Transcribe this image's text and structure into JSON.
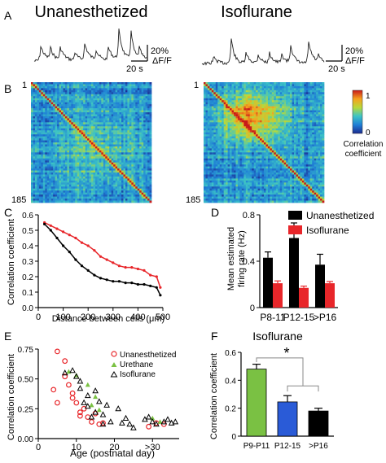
{
  "panel_letters": [
    "A",
    "B",
    "C",
    "D",
    "E",
    "F"
  ],
  "panel_a": {
    "titles": [
      "Unanesthetized",
      "Isoflurane"
    ],
    "scale_y": "20%",
    "scale_unit": "ΔF/F",
    "scale_x": "20 s"
  },
  "panel_b": {
    "row_top": "1",
    "row_bottom": "185",
    "colorbar_max": "1",
    "colorbar_min": "0",
    "colorbar_label_1": "Correlation",
    "colorbar_label_2": "coefficient"
  },
  "colors": {
    "black": "#000000",
    "red": "#e8262a",
    "green": "#7ac143",
    "blue": "#2a5bd7",
    "heatmap_low": "#1f3f9a",
    "heatmap_high": "#d7191c"
  },
  "chart_data": [
    {
      "panel": "C",
      "type": "line",
      "xlabel": "Distance between cells (μm)",
      "ylabel": "Correlation coefficient",
      "xlim": [
        0,
        500
      ],
      "ylim": [
        0,
        0.6
      ],
      "xticks": [
        0,
        100,
        200,
        300,
        400,
        500
      ],
      "yticks": [
        0.0,
        0.1,
        0.2,
        0.3,
        0.4,
        0.5,
        0.6
      ],
      "ytick_labels": [
        "0.0",
        "0.1",
        "0.2",
        "0.3",
        "0.4",
        "0.5",
        "0.6"
      ],
      "series": [
        {
          "color": "#e8262a",
          "x": [
            25,
            50,
            75,
            100,
            125,
            150,
            175,
            200,
            225,
            250,
            275,
            300,
            325,
            350,
            375,
            400,
            425,
            450,
            475,
            490
          ],
          "y": [
            0.55,
            0.53,
            0.51,
            0.49,
            0.47,
            0.45,
            0.42,
            0.4,
            0.37,
            0.33,
            0.31,
            0.29,
            0.27,
            0.26,
            0.26,
            0.25,
            0.24,
            0.21,
            0.2,
            0.13
          ]
        },
        {
          "color": "#000000",
          "x": [
            25,
            50,
            75,
            100,
            125,
            150,
            175,
            200,
            225,
            250,
            275,
            300,
            325,
            350,
            375,
            400,
            425,
            450,
            475,
            490
          ],
          "y": [
            0.54,
            0.5,
            0.45,
            0.4,
            0.36,
            0.31,
            0.27,
            0.24,
            0.21,
            0.19,
            0.18,
            0.17,
            0.17,
            0.16,
            0.16,
            0.15,
            0.15,
            0.14,
            0.13,
            0.08
          ]
        }
      ]
    },
    {
      "panel": "D",
      "type": "bar",
      "categories": [
        "P8-11",
        "P12-15",
        ">P16"
      ],
      "ylabel_1": "Mean estimated",
      "ylabel_2": "firing rate (Hz)",
      "ylim": [
        0,
        0.8
      ],
      "yticks": [
        0,
        0.4,
        0.8
      ],
      "ytick_labels": [
        "0",
        "0.4",
        "0.8"
      ],
      "series": [
        {
          "name": "Unanesthetized",
          "color": "#000000",
          "values": [
            0.43,
            0.6,
            0.37
          ],
          "errors": [
            0.05,
            0.13,
            0.09
          ]
        },
        {
          "name": "Isoflurane",
          "color": "#e8262a",
          "values": [
            0.21,
            0.17,
            0.21
          ],
          "errors": [
            0.02,
            0.015,
            0.015
          ]
        }
      ],
      "legend": "top-right"
    },
    {
      "panel": "E",
      "type": "scatter",
      "xlabel": "Age (postnatal day)",
      "ylabel": "Correlation coefficient",
      "xlim": [
        0,
        37
      ],
      "ylim": [
        0,
        0.75
      ],
      "xticks": [
        0,
        10,
        20
      ],
      "xtick_labels": [
        "0",
        "10",
        "20"
      ],
      "extra_xtick": ">30",
      "yticks": [
        0.0,
        0.25,
        0.5,
        0.75
      ],
      "ytick_labels": [
        "0.00",
        "0.25",
        "0.50",
        "0.75"
      ],
      "legend": "top-right",
      "series": [
        {
          "name": "Unanesthetized",
          "color": "#e8262a",
          "marker": "circle",
          "points": [
            [
              5,
              0.73
            ],
            [
              4,
              0.41
            ],
            [
              5,
              0.3
            ],
            [
              7,
              0.52
            ],
            [
              7,
              0.65
            ],
            [
              8,
              0.45
            ],
            [
              9,
              0.38
            ],
            [
              9,
              0.34
            ],
            [
              10,
              0.3
            ],
            [
              11,
              0.22
            ],
            [
              11,
              0.19
            ],
            [
              12,
              0.25
            ],
            [
              13,
              0.18
            ],
            [
              14,
              0.14
            ],
            [
              15,
              0.21
            ],
            [
              16,
              0.12
            ],
            [
              17,
              0.13
            ],
            [
              29,
              0.1
            ],
            [
              31,
              0.13
            ],
            [
              33,
              0.12
            ]
          ]
        },
        {
          "name": "Urethane",
          "color": "#7ac143",
          "marker": "triangle",
          "points": [
            [
              8,
              0.56
            ],
            [
              10,
              0.53
            ],
            [
              13,
              0.45
            ],
            [
              14,
              0.28
            ],
            [
              15,
              0.35
            ],
            [
              16,
              0.24
            ],
            [
              30,
              0.17
            ],
            [
              32,
              0.14
            ]
          ]
        },
        {
          "name": "Isoflurane",
          "color": "#000000",
          "marker": "triangle-open",
          "points": [
            [
              7,
              0.55
            ],
            [
              9,
              0.57
            ],
            [
              10,
              0.52
            ],
            [
              11,
              0.48
            ],
            [
              11,
              0.42
            ],
            [
              12,
              0.3
            ],
            [
              13,
              0.36
            ],
            [
              13,
              0.27
            ],
            [
              14,
              0.18
            ],
            [
              15,
              0.4
            ],
            [
              15,
              0.22
            ],
            [
              16,
              0.31
            ],
            [
              17,
              0.2
            ],
            [
              17,
              0.12
            ],
            [
              18,
              0.28
            ],
            [
              19,
              0.14
            ],
            [
              21,
              0.25
            ],
            [
              22,
              0.13
            ],
            [
              23,
              0.17
            ],
            [
              24,
              0.12
            ],
            [
              25,
              0.09
            ],
            [
              28,
              0.16
            ],
            [
              29,
              0.18
            ],
            [
              30,
              0.14
            ],
            [
              31,
              0.12
            ],
            [
              33,
              0.14
            ],
            [
              34,
              0.16
            ],
            [
              35,
              0.13
            ],
            [
              36,
              0.14
            ]
          ]
        }
      ]
    },
    {
      "panel": "F",
      "type": "bar",
      "title": "Isoflurane",
      "categories": [
        "P9-P11",
        "P12-15",
        ">P16"
      ],
      "ylabel": "Correlation coefficient",
      "ylim": [
        0,
        0.6
      ],
      "yticks": [
        0,
        0.2,
        0.4,
        0.6
      ],
      "ytick_labels": [
        "0",
        "0.2",
        "0.4",
        "0.6"
      ],
      "values": [
        0.48,
        0.245,
        0.18
      ],
      "errors": [
        0.035,
        0.045,
        0.02
      ],
      "colors": [
        "#7ac143",
        "#2a5bd7",
        "#000000"
      ],
      "annotation": "*"
    }
  ]
}
